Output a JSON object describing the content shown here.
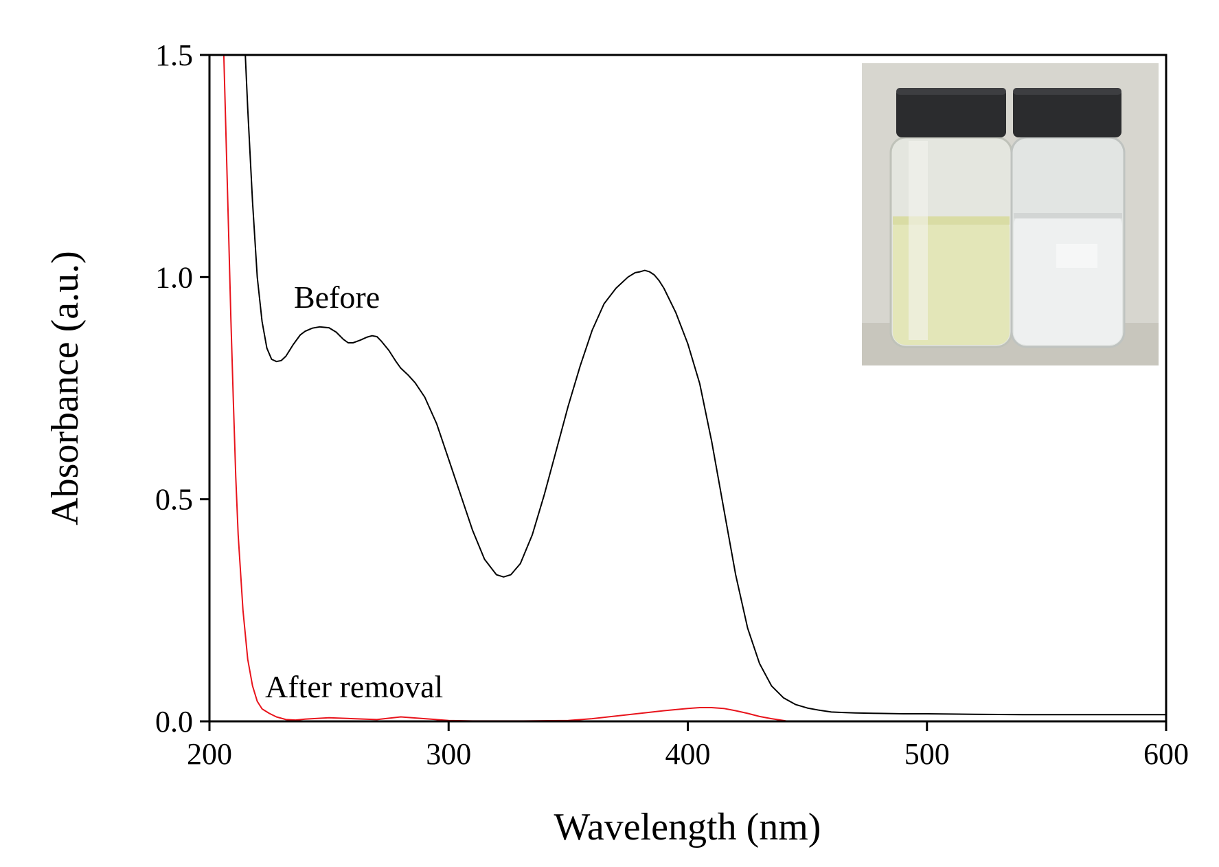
{
  "chart_data": {
    "type": "line",
    "xlabel": "Wavelength (nm)",
    "ylabel": "Absorbance (a.u.)",
    "xlim": [
      200,
      600
    ],
    "ylim": [
      0.0,
      1.5
    ],
    "xticks": [
      "200",
      "300",
      "400",
      "500",
      "600"
    ],
    "yticks": [
      "0.0",
      "0.5",
      "1.0",
      "1.5"
    ],
    "grid": false,
    "legend": "none",
    "annotations": [
      {
        "text": "Before",
        "series": "Before"
      },
      {
        "text": "After removal",
        "series": "After removal"
      }
    ],
    "inset": {
      "type": "photo",
      "description_visible": "two glass vials with black caps; left pale yellow-green liquid, right clear liquid"
    },
    "series": [
      {
        "name": "Before",
        "color": "#000000",
        "x": [
          215,
          216,
          218,
          220,
          222,
          224,
          226,
          228,
          230,
          232,
          235,
          238,
          240,
          243,
          246,
          250,
          253,
          256,
          258,
          260,
          263,
          266,
          268,
          270,
          272,
          275,
          278,
          280,
          283,
          286,
          290,
          295,
          300,
          305,
          310,
          315,
          320,
          323,
          326,
          330,
          335,
          340,
          345,
          350,
          355,
          360,
          365,
          370,
          375,
          378,
          380,
          382,
          384,
          386,
          388,
          390,
          395,
          400,
          405,
          410,
          415,
          420,
          425,
          430,
          435,
          440,
          445,
          450,
          455,
          460,
          465,
          470,
          480,
          490,
          500,
          520,
          540,
          560,
          580,
          600
        ],
        "y": [
          1.5,
          1.38,
          1.17,
          1.0,
          0.9,
          0.84,
          0.815,
          0.81,
          0.812,
          0.822,
          0.848,
          0.87,
          0.878,
          0.885,
          0.888,
          0.886,
          0.876,
          0.86,
          0.852,
          0.852,
          0.858,
          0.865,
          0.868,
          0.866,
          0.855,
          0.835,
          0.81,
          0.795,
          0.78,
          0.762,
          0.73,
          0.67,
          0.59,
          0.51,
          0.43,
          0.365,
          0.33,
          0.325,
          0.33,
          0.355,
          0.42,
          0.51,
          0.61,
          0.71,
          0.8,
          0.88,
          0.94,
          0.975,
          1.0,
          1.01,
          1.012,
          1.015,
          1.012,
          1.005,
          0.992,
          0.975,
          0.92,
          0.85,
          0.76,
          0.63,
          0.48,
          0.33,
          0.21,
          0.13,
          0.08,
          0.053,
          0.038,
          0.03,
          0.025,
          0.021,
          0.02,
          0.019,
          0.018,
          0.017,
          0.017,
          0.016,
          0.015,
          0.015,
          0.015,
          0.015
        ]
      },
      {
        "name": "After removal",
        "color": "#e8141c",
        "x": [
          206,
          207,
          208,
          209,
          210,
          211,
          212,
          214,
          216,
          218,
          220,
          222,
          225,
          228,
          232,
          236,
          240,
          250,
          260,
          270,
          280,
          290,
          300,
          310,
          330,
          350,
          360,
          370,
          380,
          390,
          400,
          405,
          410,
          415,
          420,
          425,
          430,
          435,
          440,
          442
        ],
        "y": [
          1.5,
          1.3,
          1.1,
          0.9,
          0.72,
          0.55,
          0.42,
          0.25,
          0.14,
          0.08,
          0.045,
          0.028,
          0.018,
          0.01,
          0.004,
          0.003,
          0.005,
          0.008,
          0.006,
          0.004,
          0.01,
          0.006,
          0.002,
          0.001,
          0.001,
          0.002,
          0.006,
          0.012,
          0.018,
          0.024,
          0.029,
          0.031,
          0.031,
          0.029,
          0.024,
          0.018,
          0.011,
          0.006,
          0.002,
          0.0
        ]
      }
    ]
  }
}
